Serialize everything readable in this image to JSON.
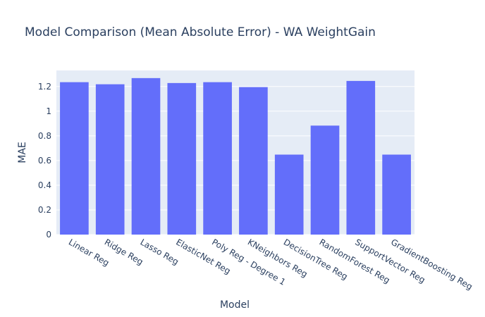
{
  "chart_data": {
    "type": "bar",
    "title": "Model Comparison (Mean Absolute Error) - WA WeightGain",
    "xlabel": "Model",
    "ylabel": "MAE",
    "categories": [
      "Linear Reg",
      "Ridge Reg",
      "Lasso Reg",
      "ElasticNet Reg",
      "Poly Reg - Degree 1",
      "KNeighbors Reg",
      "DecisionTree Reg",
      "RandomForest Reg",
      "SupportVector Reg",
      "GradientBoosting Reg"
    ],
    "values": [
      1.235,
      1.218,
      1.268,
      1.228,
      1.235,
      1.195,
      0.648,
      0.883,
      1.245,
      0.648
    ],
    "ylim": [
      0,
      1.33
    ],
    "yticks": [
      0,
      0.2,
      0.4,
      0.6,
      0.8,
      1,
      1.2
    ],
    "ytick_labels": [
      "0",
      "0.2",
      "0.4",
      "0.6",
      "0.8",
      "1",
      "1.2"
    ],
    "grid": true,
    "colors": {
      "bar": "#636efa",
      "plot_bg": "#e5ecf6",
      "grid": "#ffffff",
      "text": "#2a3f5f"
    }
  }
}
